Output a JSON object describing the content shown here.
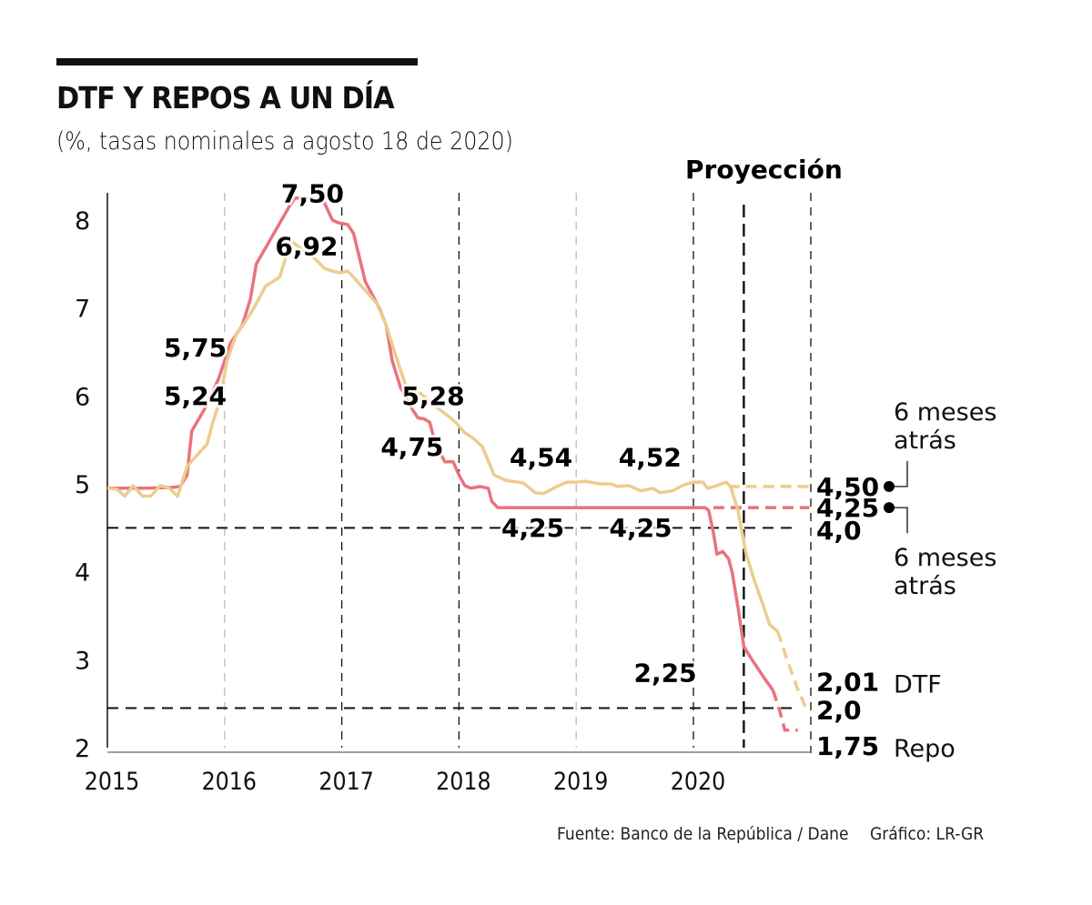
{
  "header": {
    "title": "DTF Y REPOS A UN DÍA",
    "subtitle": "(%, tasas nominales a agosto 18 de 2020)"
  },
  "footer": {
    "source": "Fuente: Banco de la República / Dane",
    "credit": "Gráfico: LR-GR"
  },
  "colors": {
    "repo": "#e8737e",
    "dtf": "#ebcd8e",
    "grid_dark": "#111111",
    "grid_light": "#bbbbbb"
  },
  "chart_data": {
    "type": "line",
    "title": "DTF Y REPOS A UN DÍA",
    "subtitle": "(%, tasas nominales a agosto 18 de 2020)",
    "xlabel": "",
    "ylabel": "",
    "xlim": [
      2015,
      2020.99
    ],
    "ylim": [
      2,
      8.3
    ],
    "yticks": [
      2,
      3,
      4,
      5,
      6,
      7,
      8
    ],
    "ytick_labels": [
      "2",
      "3",
      "4",
      "5",
      "6",
      "7",
      "8"
    ],
    "xticks": [
      2015,
      2016,
      2017,
      2018,
      2019,
      2020
    ],
    "xtick_labels": [
      "2015",
      "2016",
      "2017",
      "2018",
      "2019",
      "2020"
    ],
    "projection_label": "Proyección",
    "projection_start": 2020.43,
    "reference_lines": [
      {
        "label": "4,0",
        "y": 4.5
      },
      {
        "label": "2,0",
        "y": 2.45
      }
    ],
    "series": [
      {
        "name": "Repo",
        "key": "repo",
        "points": [
          [
            2015.0,
            4.95
          ],
          [
            2015.3,
            4.95
          ],
          [
            2015.55,
            4.96
          ],
          [
            2015.62,
            4.97
          ],
          [
            2015.68,
            5.1
          ],
          [
            2015.72,
            5.6
          ],
          [
            2015.85,
            5.9
          ],
          [
            2015.95,
            6.2
          ],
          [
            2016.05,
            6.6
          ],
          [
            2016.15,
            6.8
          ],
          [
            2016.22,
            7.1
          ],
          [
            2016.27,
            7.5
          ],
          [
            2016.4,
            7.8
          ],
          [
            2016.55,
            8.15
          ],
          [
            2016.6,
            8.25
          ],
          [
            2016.75,
            8.25
          ],
          [
            2016.85,
            8.2
          ],
          [
            2016.92,
            8.0
          ],
          [
            2016.97,
            7.97
          ],
          [
            2017.05,
            7.95
          ],
          [
            2017.1,
            7.85
          ],
          [
            2017.2,
            7.3
          ],
          [
            2017.32,
            7.0
          ],
          [
            2017.38,
            6.8
          ],
          [
            2017.43,
            6.4
          ],
          [
            2017.5,
            6.1
          ],
          [
            2017.6,
            5.85
          ],
          [
            2017.65,
            5.75
          ],
          [
            2017.7,
            5.74
          ],
          [
            2017.75,
            5.7
          ],
          [
            2017.8,
            5.45
          ],
          [
            2017.88,
            5.25
          ],
          [
            2017.95,
            5.25
          ],
          [
            2018.0,
            5.1
          ],
          [
            2018.05,
            4.98
          ],
          [
            2018.1,
            4.95
          ],
          [
            2018.18,
            4.97
          ],
          [
            2018.25,
            4.95
          ],
          [
            2018.28,
            4.8
          ],
          [
            2018.33,
            4.73
          ],
          [
            2019.0,
            4.73
          ],
          [
            2019.5,
            4.73
          ],
          [
            2020.1,
            4.73
          ],
          [
            2020.13,
            4.7
          ],
          [
            2020.17,
            4.45
          ],
          [
            2020.2,
            4.2
          ],
          [
            2020.25,
            4.23
          ],
          [
            2020.3,
            4.15
          ],
          [
            2020.33,
            4.0
          ],
          [
            2020.38,
            3.6
          ],
          [
            2020.43,
            3.15
          ],
          [
            2020.5,
            3.0
          ],
          [
            2020.6,
            2.8
          ],
          [
            2020.68,
            2.65
          ]
        ],
        "projection": [
          [
            2020.68,
            2.65
          ],
          [
            2020.74,
            2.4
          ],
          [
            2020.78,
            2.2
          ],
          [
            2020.84,
            2.2
          ],
          [
            2020.89,
            2.2
          ]
        ],
        "flat_projection": [
          [
            2020.17,
            4.73
          ],
          [
            2020.99,
            4.73
          ]
        ]
      },
      {
        "name": "DTF",
        "key": "dtf",
        "points": [
          [
            2015.0,
            4.95
          ],
          [
            2015.08,
            4.94
          ],
          [
            2015.15,
            4.86
          ],
          [
            2015.22,
            4.98
          ],
          [
            2015.3,
            4.86
          ],
          [
            2015.37,
            4.86
          ],
          [
            2015.45,
            4.98
          ],
          [
            2015.52,
            4.96
          ],
          [
            2015.6,
            4.86
          ],
          [
            2015.68,
            5.2
          ],
          [
            2015.78,
            5.35
          ],
          [
            2015.85,
            5.45
          ],
          [
            2015.9,
            5.7
          ],
          [
            2015.96,
            5.95
          ],
          [
            2016.02,
            6.4
          ],
          [
            2016.1,
            6.7
          ],
          [
            2016.18,
            6.85
          ],
          [
            2016.25,
            7.0
          ],
          [
            2016.35,
            7.25
          ],
          [
            2016.47,
            7.35
          ],
          [
            2016.55,
            7.7
          ],
          [
            2016.58,
            7.75
          ],
          [
            2016.63,
            7.7
          ],
          [
            2016.68,
            7.65
          ],
          [
            2016.78,
            7.55
          ],
          [
            2016.85,
            7.45
          ],
          [
            2016.92,
            7.42
          ],
          [
            2016.98,
            7.4
          ],
          [
            2017.05,
            7.42
          ],
          [
            2017.1,
            7.35
          ],
          [
            2017.2,
            7.2
          ],
          [
            2017.3,
            7.05
          ],
          [
            2017.38,
            6.8
          ],
          [
            2017.45,
            6.5
          ],
          [
            2017.5,
            6.3
          ],
          [
            2017.55,
            6.1
          ],
          [
            2017.68,
            6.02
          ],
          [
            2017.8,
            5.88
          ],
          [
            2017.9,
            5.78
          ],
          [
            2017.97,
            5.7
          ],
          [
            2018.05,
            5.58
          ],
          [
            2018.12,
            5.52
          ],
          [
            2018.2,
            5.42
          ],
          [
            2018.3,
            5.1
          ],
          [
            2018.4,
            5.04
          ],
          [
            2018.55,
            5.01
          ],
          [
            2018.65,
            4.9
          ],
          [
            2018.72,
            4.89
          ],
          [
            2018.82,
            4.96
          ],
          [
            2018.92,
            5.02
          ],
          [
            2019.0,
            5.02
          ],
          [
            2019.08,
            5.03
          ],
          [
            2019.2,
            5.0
          ],
          [
            2019.3,
            5.0
          ],
          [
            2019.35,
            4.97
          ],
          [
            2019.45,
            4.98
          ],
          [
            2019.55,
            4.92
          ],
          [
            2019.65,
            4.95
          ],
          [
            2019.72,
            4.9
          ],
          [
            2019.82,
            4.92
          ],
          [
            2019.92,
            4.99
          ],
          [
            2020.0,
            5.02
          ],
          [
            2020.08,
            5.02
          ],
          [
            2020.12,
            4.95
          ],
          [
            2020.2,
            4.98
          ],
          [
            2020.28,
            5.02
          ],
          [
            2020.32,
            4.96
          ],
          [
            2020.38,
            4.7
          ],
          [
            2020.45,
            4.2
          ],
          [
            2020.52,
            3.9
          ],
          [
            2020.6,
            3.6
          ],
          [
            2020.65,
            3.4
          ],
          [
            2020.72,
            3.32
          ]
        ],
        "projection": [
          [
            2020.72,
            3.32
          ],
          [
            2020.8,
            3.0
          ],
          [
            2020.88,
            2.7
          ],
          [
            2020.96,
            2.45
          ]
        ],
        "flat_projection": [
          [
            2020.3,
            4.97
          ],
          [
            2020.99,
            4.97
          ]
        ]
      }
    ],
    "annotations": [
      {
        "text": "7,50",
        "x": 2016.75,
        "y": 8.2,
        "series": "Repo"
      },
      {
        "text": "6,92",
        "x": 2016.7,
        "y": 7.6,
        "series": "DTF"
      },
      {
        "text": "5,75",
        "x": 2015.75,
        "y": 6.45,
        "series": "Repo"
      },
      {
        "text": "5,24",
        "x": 2015.75,
        "y": 5.9,
        "series": "DTF"
      },
      {
        "text": "5,28",
        "x": 2017.78,
        "y": 5.9,
        "series": "DTF"
      },
      {
        "text": "4,75",
        "x": 2017.6,
        "y": 5.32,
        "series": "Repo"
      },
      {
        "text": "4,54",
        "x": 2018.7,
        "y": 5.2,
        "series": "DTF"
      },
      {
        "text": "4,52",
        "x": 2019.63,
        "y": 5.2,
        "series": "DTF"
      },
      {
        "text": "4,25",
        "x": 2018.63,
        "y": 4.4,
        "series": "Repo"
      },
      {
        "text": "4,25",
        "x": 2019.55,
        "y": 4.4,
        "series": "Repo"
      },
      {
        "text": "2,25",
        "x": 2019.76,
        "y": 2.75,
        "series": "Repo"
      }
    ],
    "end_labels": [
      {
        "text": "4,50",
        "y": 4.97,
        "dot": true,
        "note": "6 meses atrás",
        "note_position": "above"
      },
      {
        "text": "4,25",
        "y": 4.73,
        "dot": true,
        "note": "6 meses atrás",
        "note_position": "below"
      },
      {
        "text": "4,0",
        "y": 4.47
      },
      {
        "text": "2,01",
        "y": 2.75,
        "legend": "DTF"
      },
      {
        "text": "2,0",
        "y": 2.43
      },
      {
        "text": "1,75",
        "y": 2.02,
        "legend": "Repo"
      }
    ]
  }
}
